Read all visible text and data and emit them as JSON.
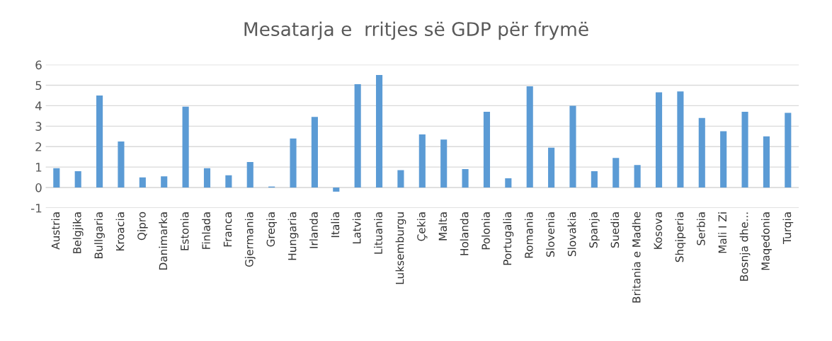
{
  "chart_data": {
    "type": "bar",
    "title": "Mesatarja e  rritjes së GDP për frymë",
    "categories": [
      "Austria",
      "Belgjika",
      "Bullgaria",
      "Kroacia",
      "Qipro",
      "Danimarka",
      "Estonia",
      "Finlada",
      "Franca",
      "Gjermania",
      "Greqia",
      "Hungaria",
      "Irlanda",
      "Italia",
      "Latvia",
      "Lituania",
      "Luksemburgu",
      "Çekia",
      "Malta",
      "Holanda",
      "Polonia",
      "Portugalia",
      "Romania",
      "Slovenia",
      "Slovakia",
      "Spanja",
      "Suedia",
      "Britania e Madhe",
      "Kosova",
      "Shqiperia",
      "Serbia",
      "Mali I Zi",
      "Bosnja dhe...",
      "Maqedonia",
      "Turqia"
    ],
    "values": [
      0.95,
      0.8,
      4.5,
      2.25,
      0.5,
      0.55,
      3.95,
      0.95,
      0.6,
      1.25,
      0.05,
      2.4,
      3.45,
      -0.2,
      5.05,
      5.5,
      0.85,
      2.6,
      2.35,
      0.9,
      3.7,
      0.45,
      4.95,
      1.95,
      4.0,
      0.8,
      1.45,
      1.1,
      4.65,
      4.7,
      3.4,
      2.75,
      3.7,
      2.5,
      3.65
    ],
    "color": "#5b9bd5",
    "ylim": [
      -1,
      6
    ],
    "yticks": [
      -1,
      0,
      1,
      2,
      3,
      4,
      5,
      6
    ],
    "grid": "y"
  }
}
